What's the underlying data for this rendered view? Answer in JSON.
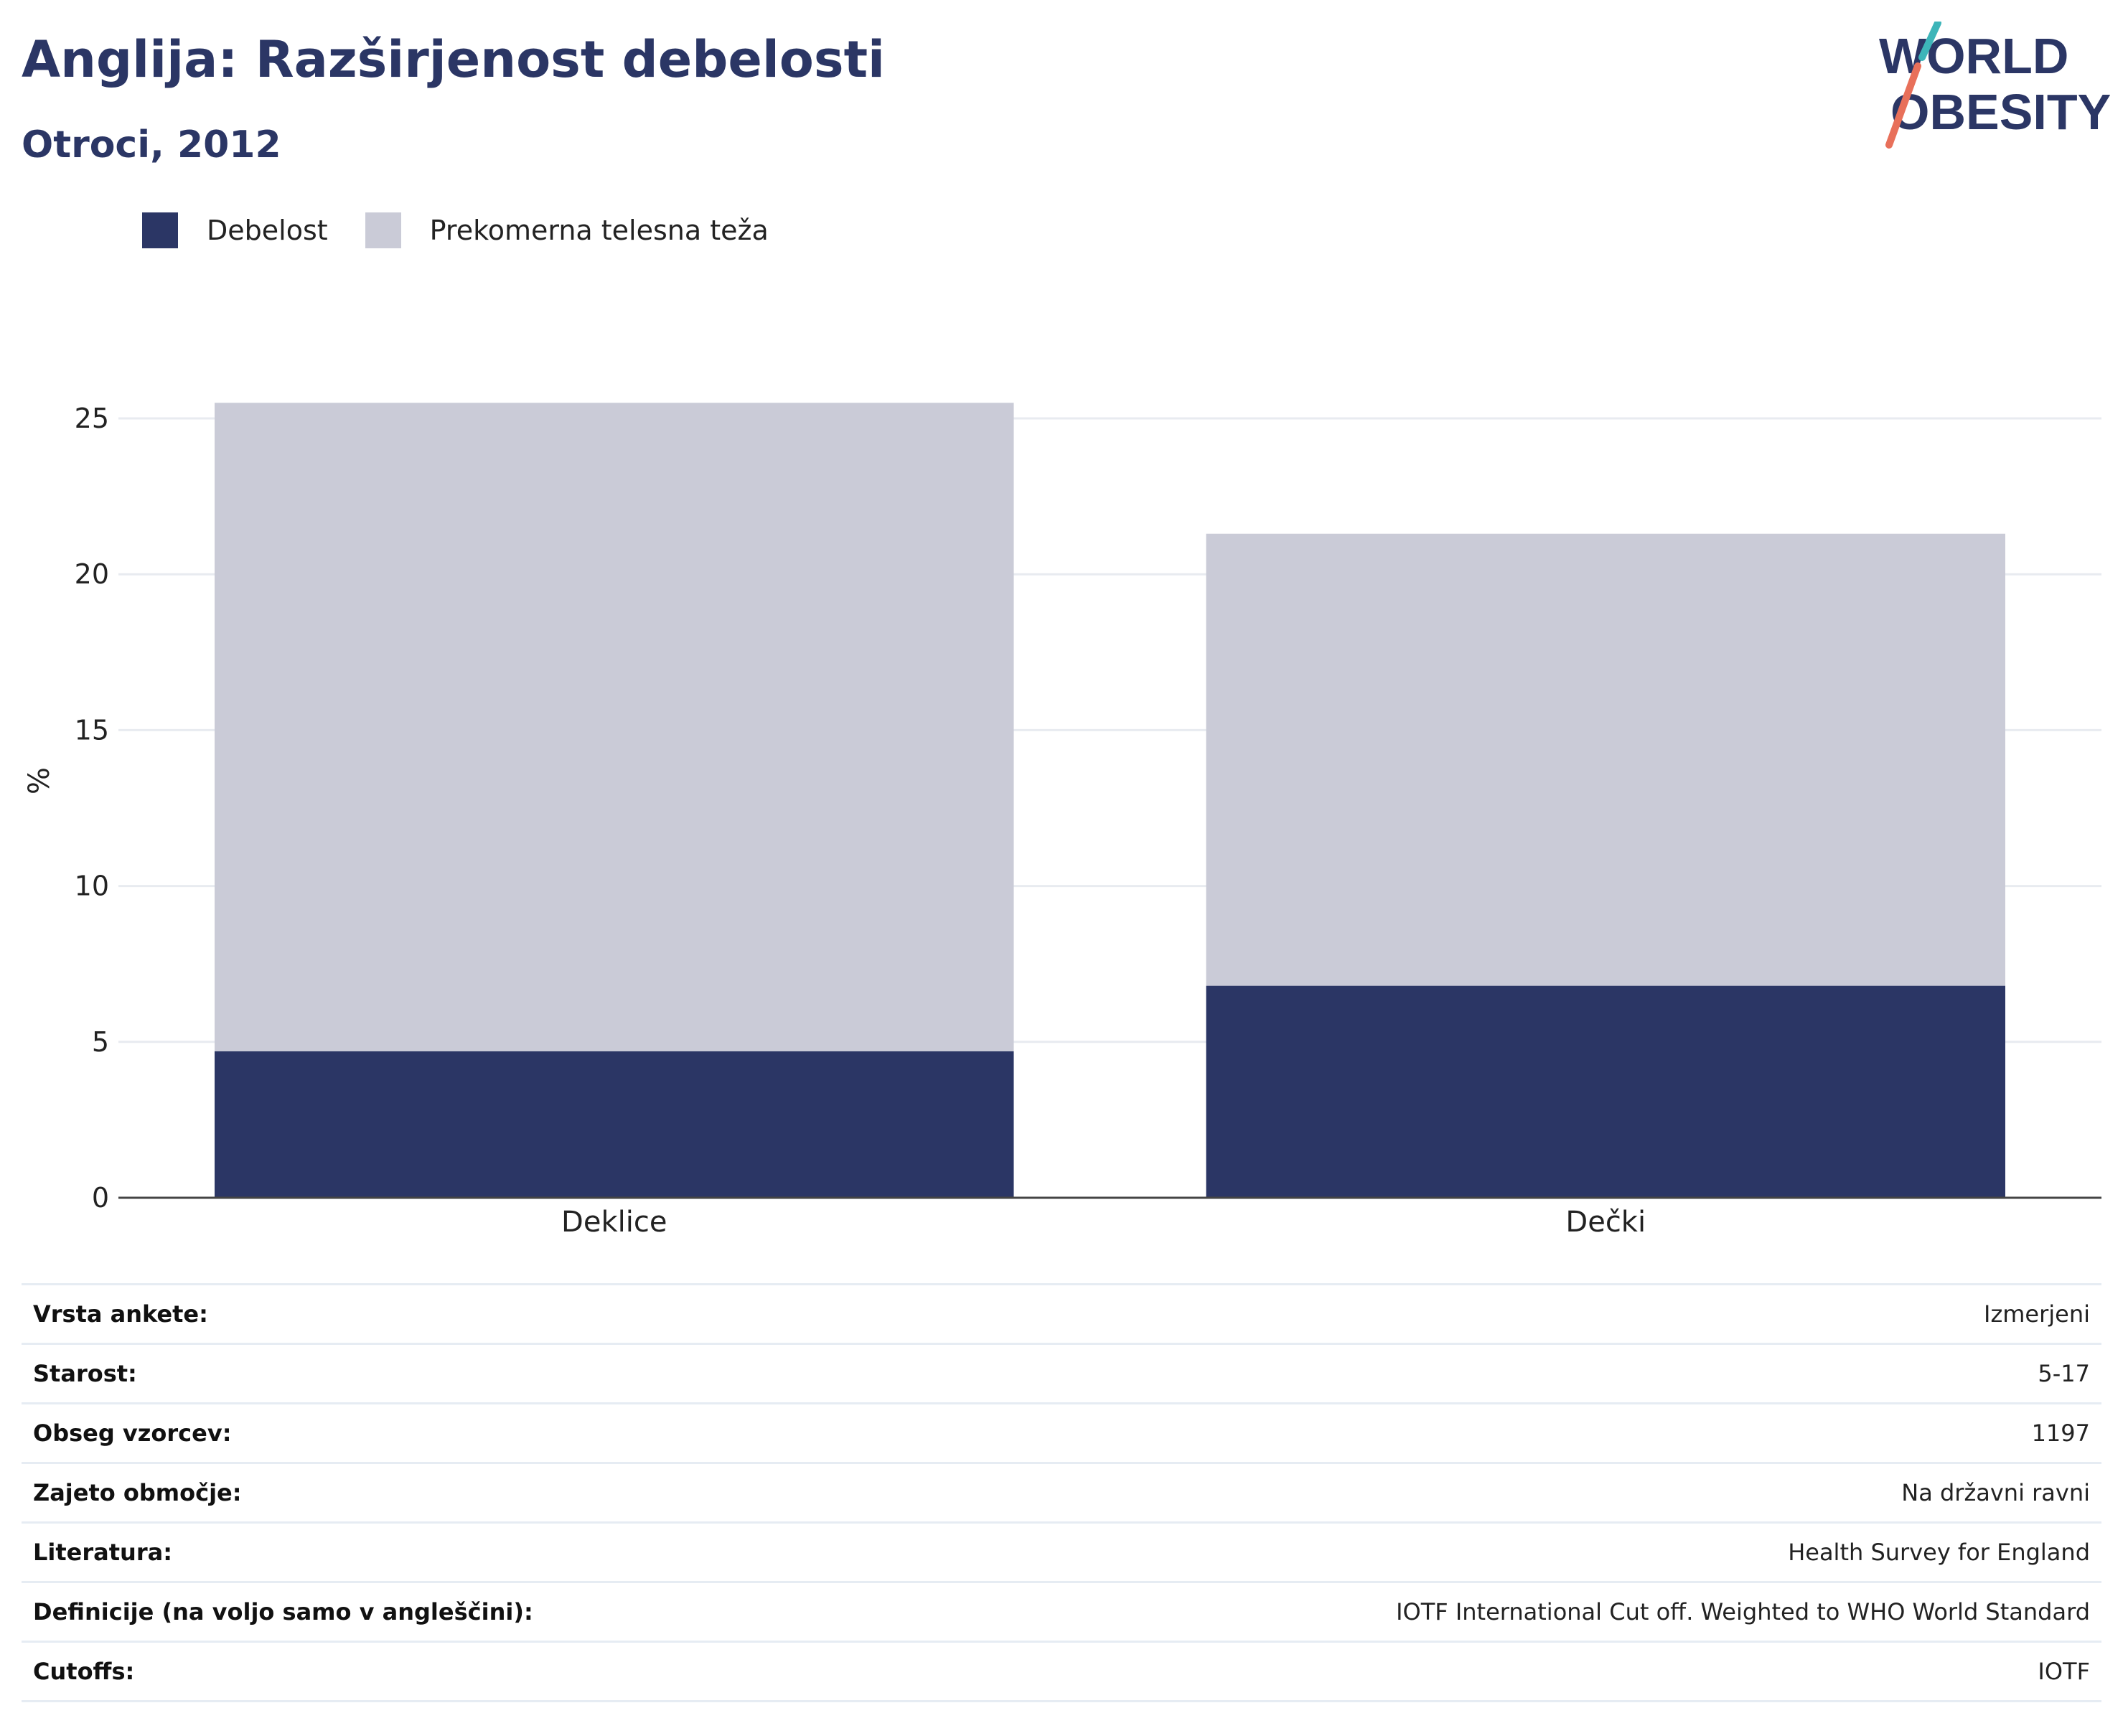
{
  "header": {
    "title": "Anglija: Razširjenost debelosti",
    "subtitle": "Otroci, 2012"
  },
  "logo": {
    "line1": "WORLD",
    "line2": "OBESITY",
    "colors": {
      "text": "#2b3665",
      "slash_top": "#3db5b9",
      "slash_bottom": "#e8705a"
    }
  },
  "legend": [
    {
      "label": "Debelost",
      "color": "#2b3665"
    },
    {
      "label": "Prekomerna telesna teža",
      "color": "#cacbd7"
    }
  ],
  "chart_data": {
    "type": "bar",
    "stacked": true,
    "categories": [
      "Deklice",
      "Dečki"
    ],
    "series": [
      {
        "name": "Debelost",
        "values": [
          4.7,
          6.8
        ],
        "color": "#2b3665"
      },
      {
        "name": "Prekomerna telesna teža",
        "values": [
          20.8,
          14.5
        ],
        "color": "#cacbd7"
      }
    ],
    "ylabel": "%",
    "ylim": [
      0,
      27
    ],
    "yticks": [
      0,
      5,
      10,
      15,
      20,
      25
    ],
    "grid": true,
    "legend_position": "top-left"
  },
  "info": [
    {
      "key": "Vrsta ankete:",
      "value": "Izmerjeni"
    },
    {
      "key": "Starost:",
      "value": "5-17"
    },
    {
      "key": "Obseg vzorcev:",
      "value": "1197"
    },
    {
      "key": "Zajeto območje:",
      "value": "Na državni ravni"
    },
    {
      "key": "Literatura:",
      "value": "Health Survey for England"
    },
    {
      "key": "Definicije (na voljo samo v angleščini):",
      "value": "IOTF International Cut off. Weighted to WHO World Standard"
    },
    {
      "key": "Cutoffs:",
      "value": "IOTF"
    }
  ]
}
